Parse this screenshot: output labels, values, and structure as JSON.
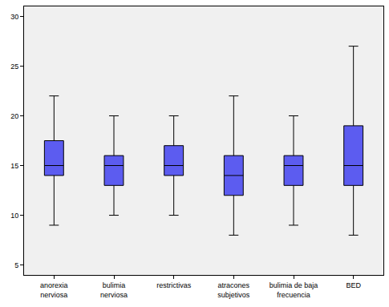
{
  "chart_data": {
    "type": "box",
    "categories": [
      "anorexia nerviosa",
      "bulimia nerviosa",
      "restrictivas",
      "atracones subjetivos",
      "bulimia de baja frecuencia",
      "BED"
    ],
    "min": [
      9,
      10,
      10,
      8,
      9,
      8
    ],
    "q1": [
      14,
      13,
      14,
      12,
      13,
      13
    ],
    "median": [
      15,
      15,
      15,
      14,
      15,
      15
    ],
    "q3": [
      17.5,
      16,
      17,
      16,
      16,
      19
    ],
    "max": [
      22,
      20,
      20,
      22,
      20,
      27
    ],
    "color": "#5c5cf0",
    "ylim": [
      4,
      31
    ],
    "yticks": [
      5,
      10,
      15,
      20,
      25,
      30
    ],
    "grid": false
  }
}
